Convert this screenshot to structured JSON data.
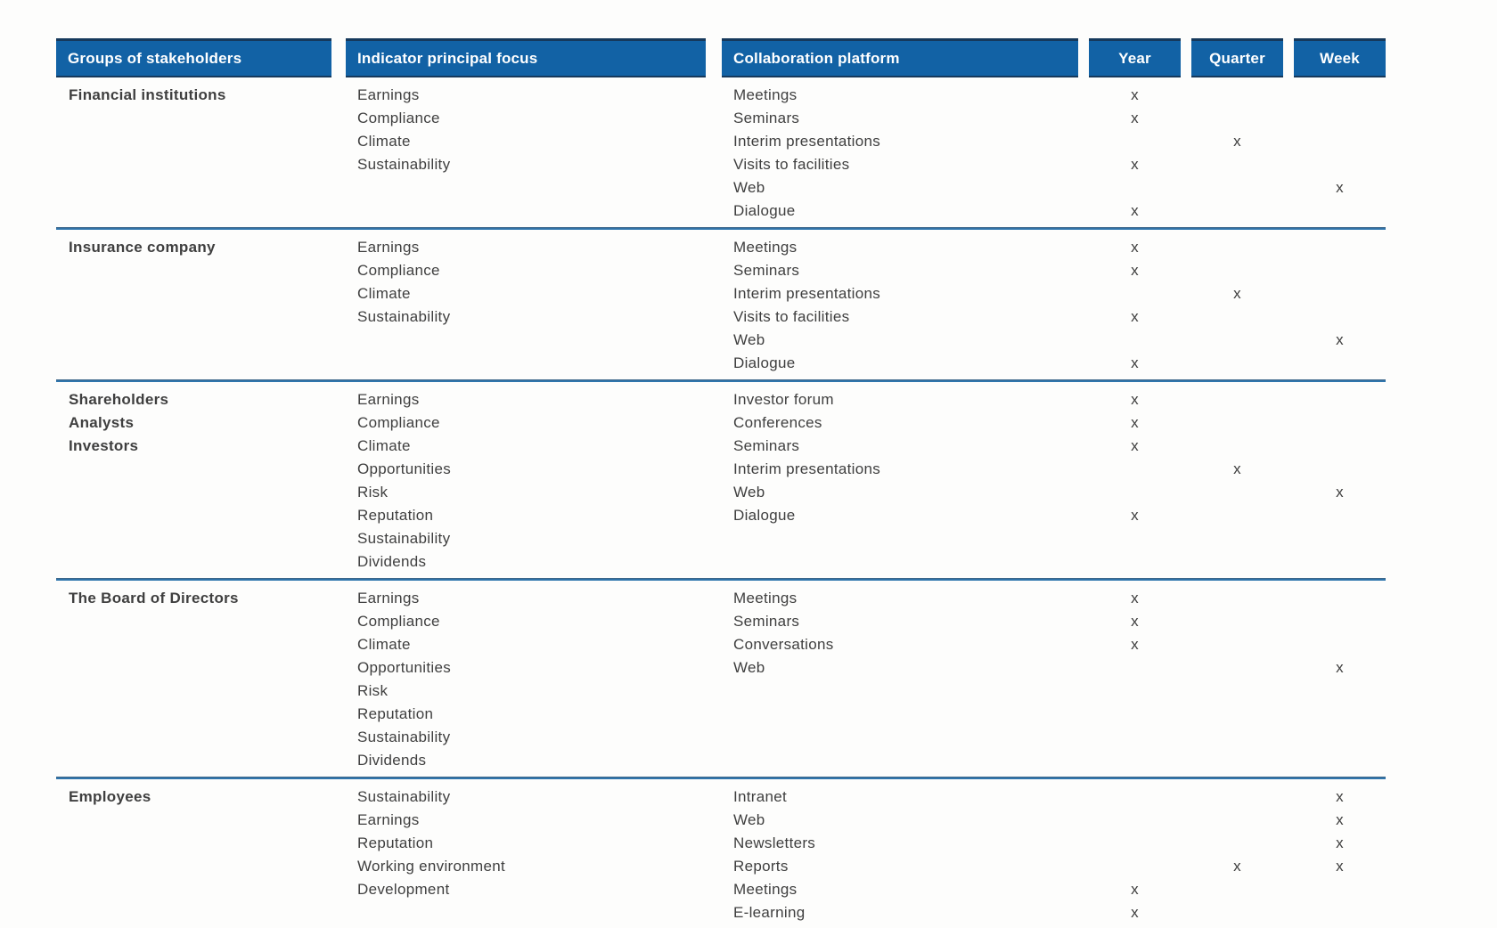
{
  "table": {
    "columns": [
      {
        "key": "group",
        "label": "Groups of stakeholders"
      },
      {
        "key": "indicator",
        "label": "Indicator principal focus"
      },
      {
        "key": "platform",
        "label": "Collaboration platform"
      },
      {
        "key": "year",
        "label": "Year"
      },
      {
        "key": "quarter",
        "label": "Quarter"
      },
      {
        "key": "week",
        "label": "Week"
      }
    ],
    "mark": "x",
    "groups": [
      {
        "name_lines": [
          "Financial institutions"
        ],
        "indicators": [
          "Earnings",
          "Compliance",
          "Climate",
          "Sustainability"
        ],
        "platforms": [
          {
            "label": "Meetings",
            "marks": [
              "year"
            ]
          },
          {
            "label": "Seminars",
            "marks": [
              "year"
            ]
          },
          {
            "label": "Interim presentations",
            "marks": [
              "quarter"
            ]
          },
          {
            "label": "Visits to facilities",
            "marks": [
              "year"
            ]
          },
          {
            "label": "Web",
            "marks": [
              "week"
            ]
          },
          {
            "label": "Dialogue",
            "marks": [
              "year"
            ]
          }
        ]
      },
      {
        "name_lines": [
          "Insurance company"
        ],
        "indicators": [
          "Earnings",
          "Compliance",
          "Climate",
          "Sustainability"
        ],
        "platforms": [
          {
            "label": "Meetings",
            "marks": [
              "year"
            ]
          },
          {
            "label": "Seminars",
            "marks": [
              "year"
            ]
          },
          {
            "label": "Interim presentations",
            "marks": [
              "quarter"
            ]
          },
          {
            "label": "Visits to facilities",
            "marks": [
              "year"
            ]
          },
          {
            "label": "Web",
            "marks": [
              "week"
            ]
          },
          {
            "label": "Dialogue",
            "marks": [
              "year"
            ]
          }
        ]
      },
      {
        "name_lines": [
          "Shareholders",
          "Analysts",
          "Investors"
        ],
        "indicators": [
          "Earnings",
          "Compliance",
          "Climate",
          "Opportunities",
          "Risk",
          "Reputation",
          "Sustainability",
          "Dividends"
        ],
        "platforms": [
          {
            "label": "Investor forum",
            "marks": [
              "year"
            ]
          },
          {
            "label": "Conferences",
            "marks": [
              "year"
            ]
          },
          {
            "label": "Seminars",
            "marks": [
              "year"
            ]
          },
          {
            "label": "Interim presentations",
            "marks": [
              "quarter"
            ]
          },
          {
            "label": "Web",
            "marks": [
              "week"
            ]
          },
          {
            "label": "Dialogue",
            "marks": [
              "year"
            ]
          }
        ]
      },
      {
        "name_lines": [
          "The Board of Directors"
        ],
        "indicators": [
          "Earnings",
          "Compliance",
          "Climate",
          "Opportunities",
          "Risk",
          "Reputation",
          "Sustainability",
          "Dividends"
        ],
        "platforms": [
          {
            "label": "Meetings",
            "marks": [
              "year"
            ]
          },
          {
            "label": "Seminars",
            "marks": [
              "year"
            ]
          },
          {
            "label": "Conversations",
            "marks": [
              "year"
            ]
          },
          {
            "label": "Web",
            "marks": [
              "week"
            ]
          }
        ]
      },
      {
        "name_lines": [
          "Employees"
        ],
        "indicators": [
          "Sustainability",
          "Earnings",
          "Reputation",
          "Working environment",
          "Development"
        ],
        "platforms": [
          {
            "label": "Intranet",
            "marks": [
              "week"
            ]
          },
          {
            "label": "Web",
            "marks": [
              "week"
            ]
          },
          {
            "label": "Newsletters",
            "marks": [
              "week"
            ]
          },
          {
            "label": "Reports",
            "marks": [
              "quarter",
              "week"
            ]
          },
          {
            "label": "Meetings",
            "marks": [
              "year"
            ]
          },
          {
            "label": "E-learning",
            "marks": [
              "year"
            ]
          }
        ]
      }
    ]
  },
  "colors": {
    "header_bg": "#1262a5",
    "header_text": "#ffffff",
    "header_edge": "#16395c",
    "separator_blue": "#2f76ae",
    "body_text": "#3f3f3f",
    "group_text": "#1c1c34",
    "mark": "#3b3b3b"
  }
}
